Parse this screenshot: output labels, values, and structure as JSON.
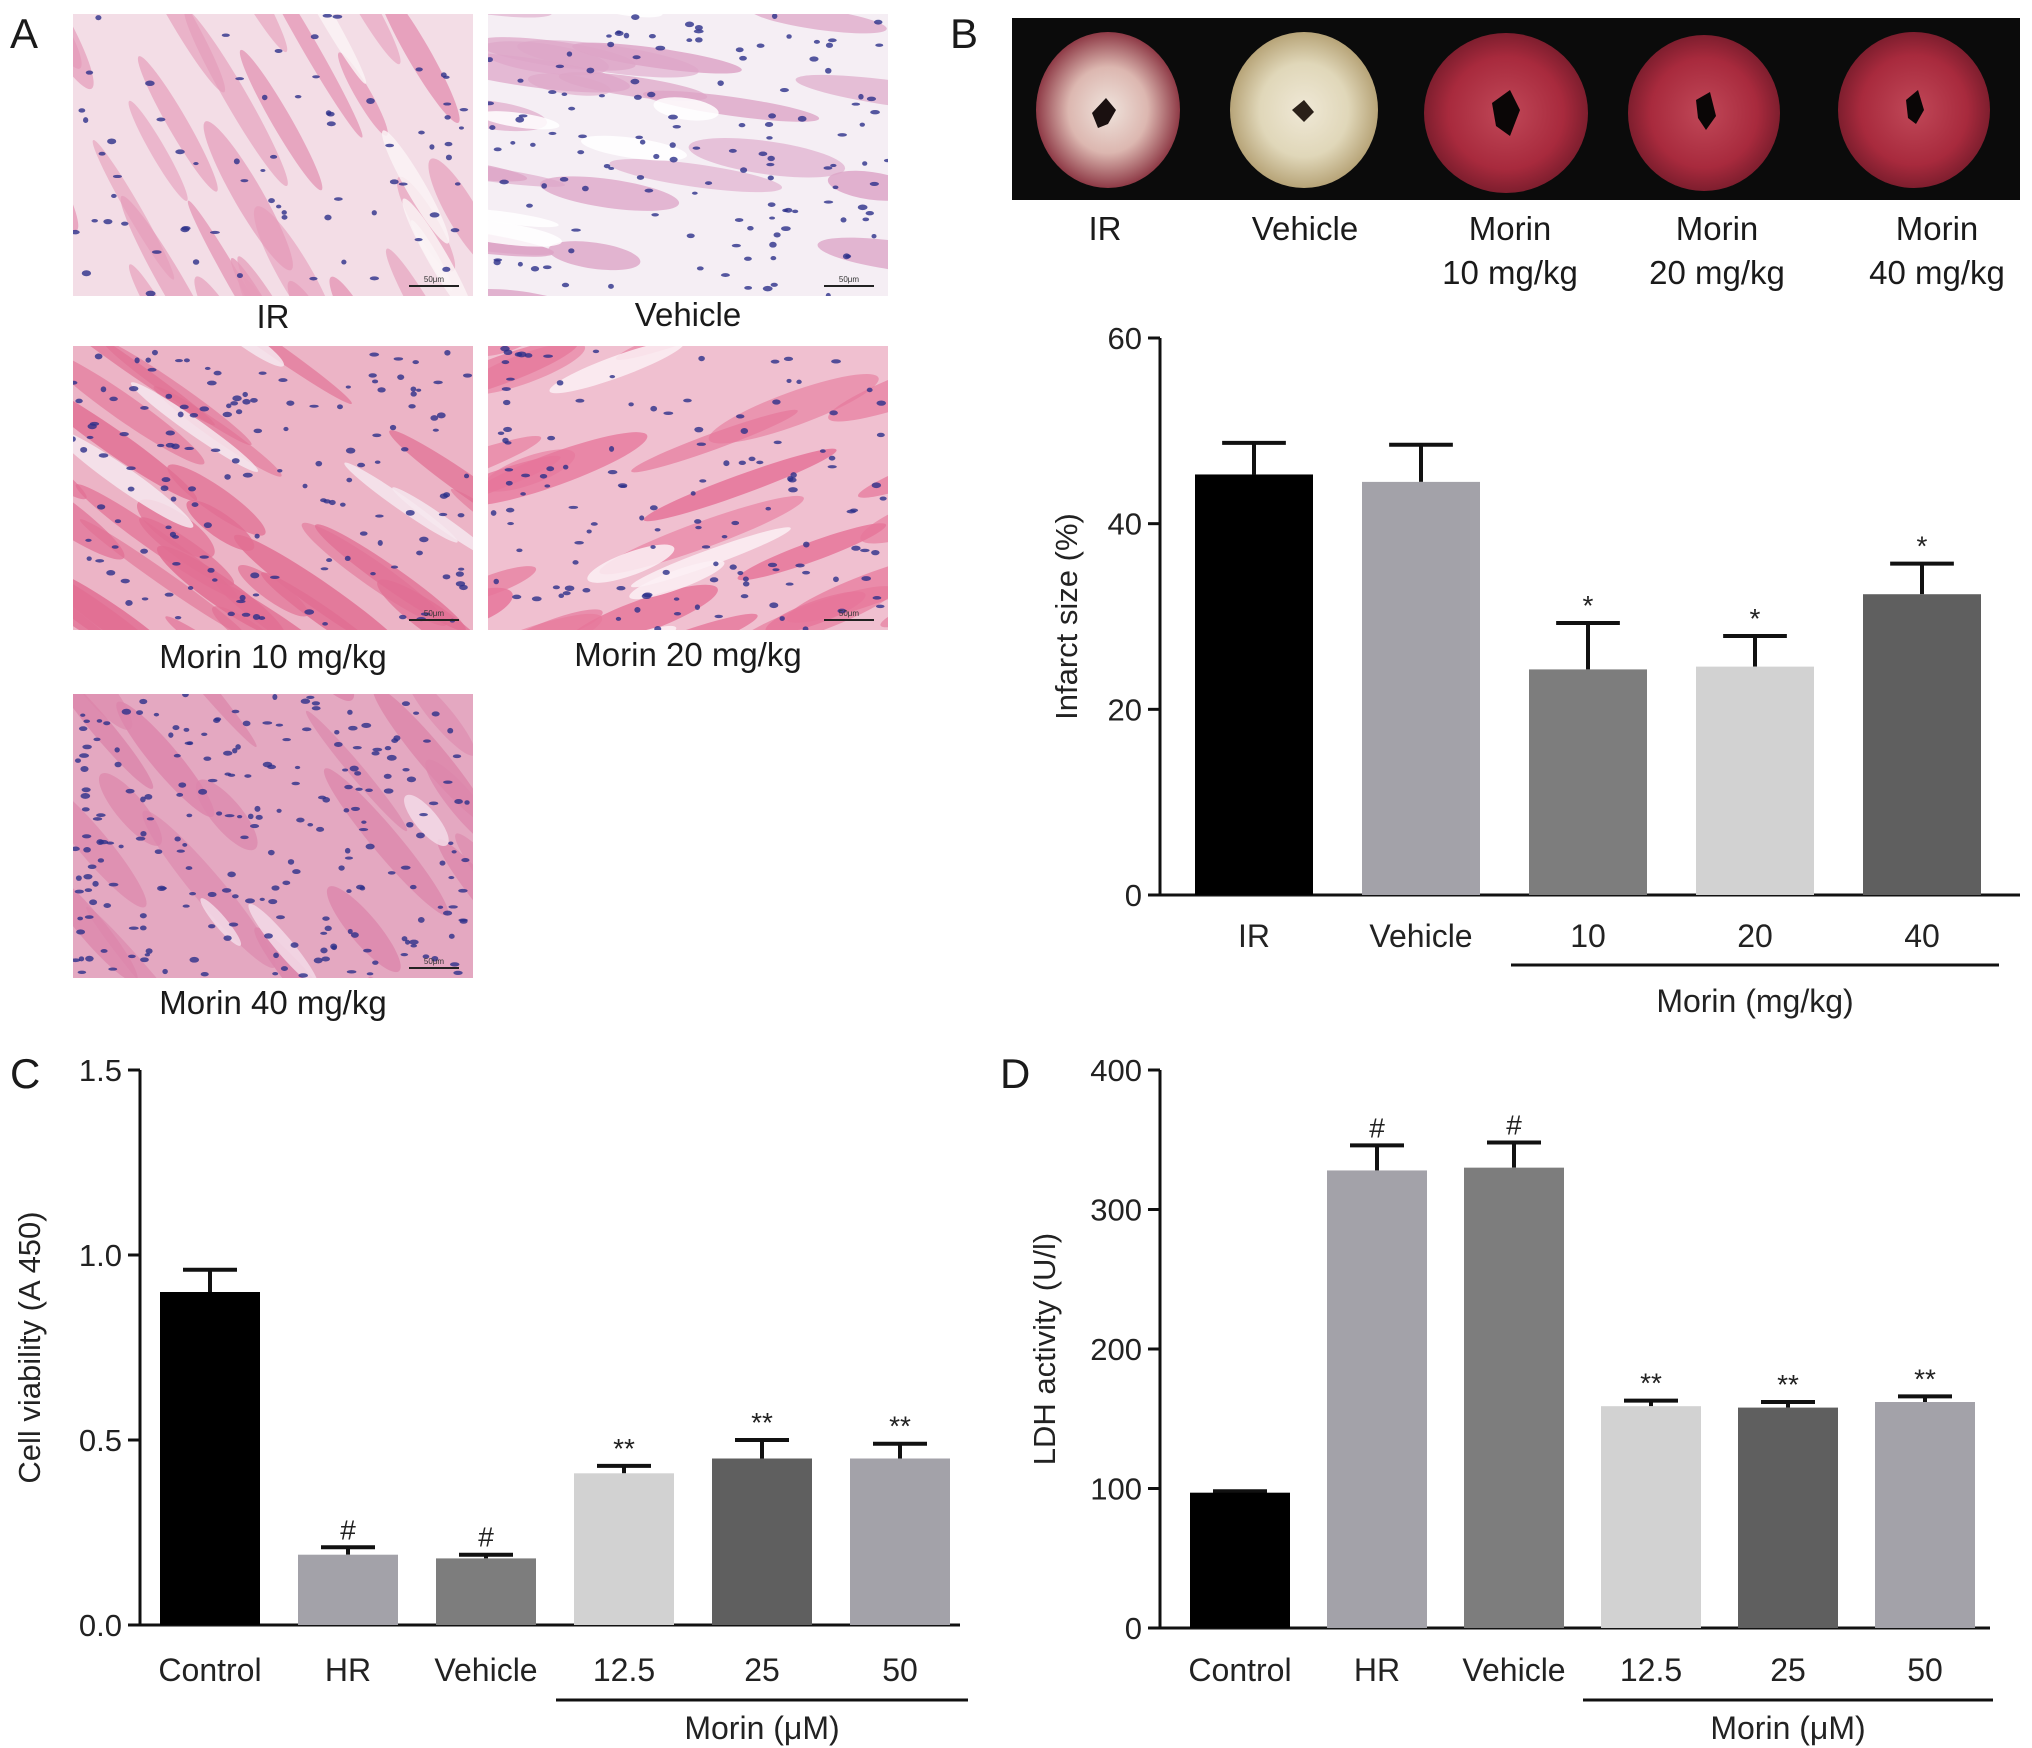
{
  "panels": {
    "A": {
      "letter": "A",
      "captions": [
        "IR",
        "Vehicle",
        "Morin 10 mg/kg",
        "Morin 20 mg/kg",
        "Morin 40 mg/kg"
      ],
      "scale_bar_text": "50μm"
    },
    "B": {
      "letter": "B",
      "photo_labels": [
        {
          "line1": "IR",
          "line2": ""
        },
        {
          "line1": "Vehicle",
          "line2": ""
        },
        {
          "line1": "Morin",
          "line2": "10 mg/kg"
        },
        {
          "line1": "Morin",
          "line2": "20 mg/kg"
        },
        {
          "line1": "Morin",
          "line2": "40 mg/kg"
        }
      ]
    },
    "C": {
      "letter": "C"
    },
    "D": {
      "letter": "D"
    }
  },
  "chart_data": [
    {
      "panel": "B",
      "type": "bar",
      "categories": [
        "IR",
        "Vehicle",
        "10",
        "20",
        "40"
      ],
      "values": [
        45.3,
        44.5,
        24.3,
        24.6,
        32.4
      ],
      "errors": [
        3.4,
        4.0,
        5.0,
        3.3,
        3.3
      ],
      "significance": [
        "",
        "",
        "*",
        "*",
        "*"
      ],
      "bar_colors": [
        "#000000",
        "#a3a2a9",
        "#7d7d7d",
        "#d2d2d2",
        "#5f5f5f"
      ],
      "ylabel": "Infarct size (%)",
      "yticks": [
        0,
        20,
        40,
        60
      ],
      "ylim": [
        0,
        60
      ],
      "group_label": "Morin (mg/kg)",
      "group_from": 2,
      "group_to": 4
    },
    {
      "panel": "C",
      "type": "bar",
      "categories": [
        "Control",
        "HR",
        "Vehicle",
        "12.5",
        "25",
        "50"
      ],
      "values": [
        0.9,
        0.19,
        0.18,
        0.41,
        0.45,
        0.45
      ],
      "errors": [
        0.06,
        0.02,
        0.01,
        0.02,
        0.05,
        0.04
      ],
      "significance": [
        "",
        "#",
        "#",
        "**",
        "**",
        "**"
      ],
      "bar_colors": [
        "#000000",
        "#a3a2a9",
        "#7d7d7d",
        "#d2d2d2",
        "#5f5f5f",
        "#a3a2a9"
      ],
      "ylabel": "Cell viability (A 450)",
      "yticks": [
        "0.0",
        "0.5",
        "1.0",
        "1.5"
      ],
      "ylim": [
        0,
        1.5
      ],
      "group_label": "Morin (μM)",
      "group_from": 3,
      "group_to": 5
    },
    {
      "panel": "D",
      "type": "bar",
      "categories": [
        "Control",
        "HR",
        "Vehicle",
        "12.5",
        "25",
        "50"
      ],
      "values": [
        97,
        328,
        330,
        159,
        158,
        162
      ],
      "errors": [
        1,
        18,
        18,
        4,
        4,
        4
      ],
      "significance": [
        "",
        "#",
        "#",
        "**",
        "**",
        "**"
      ],
      "bar_colors": [
        "#000000",
        "#a3a2a9",
        "#7d7d7d",
        "#d2d2d2",
        "#5f5f5f",
        "#a3a2a9"
      ],
      "ylabel": "LDH activity (U/l)",
      "yticks": [
        0,
        100,
        200,
        300,
        400
      ],
      "ylim": [
        0,
        400
      ],
      "group_label": "Morin (μM)",
      "group_from": 3,
      "group_to": 5
    }
  ]
}
